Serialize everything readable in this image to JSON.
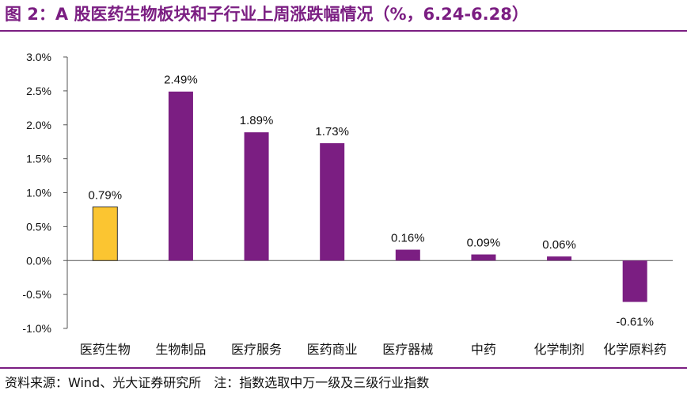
{
  "title": "图 2：A 股医药生物板块和子行业上周涨跌幅情况（%，6.24-6.28）",
  "source": "资料来源：Wind、光大证券研究所　注：指数选取中万一级及三级行业指数",
  "colors": {
    "primary": "#7B1E82",
    "highlight": "#FBC531",
    "axis": "#555555"
  },
  "chart_data": {
    "type": "bar",
    "categories": [
      "医药生物",
      "生物制品",
      "医疗服务",
      "医药商业",
      "医疗器械",
      "中药",
      "化学制剂",
      "化学原料药"
    ],
    "values": [
      0.79,
      2.49,
      1.89,
      1.73,
      0.16,
      0.09,
      0.06,
      -0.61
    ],
    "data_labels": [
      "0.79%",
      "2.49%",
      "1.89%",
      "1.73%",
      "0.16%",
      "0.09%",
      "0.06%",
      "-0.61%"
    ],
    "highlight_index": 0,
    "ylim": [
      -1.0,
      3.0
    ],
    "yticks": [
      3.0,
      2.5,
      2.0,
      1.5,
      1.0,
      0.5,
      0.0,
      -0.5,
      -1.0
    ],
    "ytick_labels": [
      "3.0%",
      "2.5%",
      "2.0%",
      "1.5%",
      "1.0%",
      "0.5%",
      "0.0%",
      "-0.5%",
      "-1.0%"
    ],
    "grid": false,
    "legend": "none"
  }
}
